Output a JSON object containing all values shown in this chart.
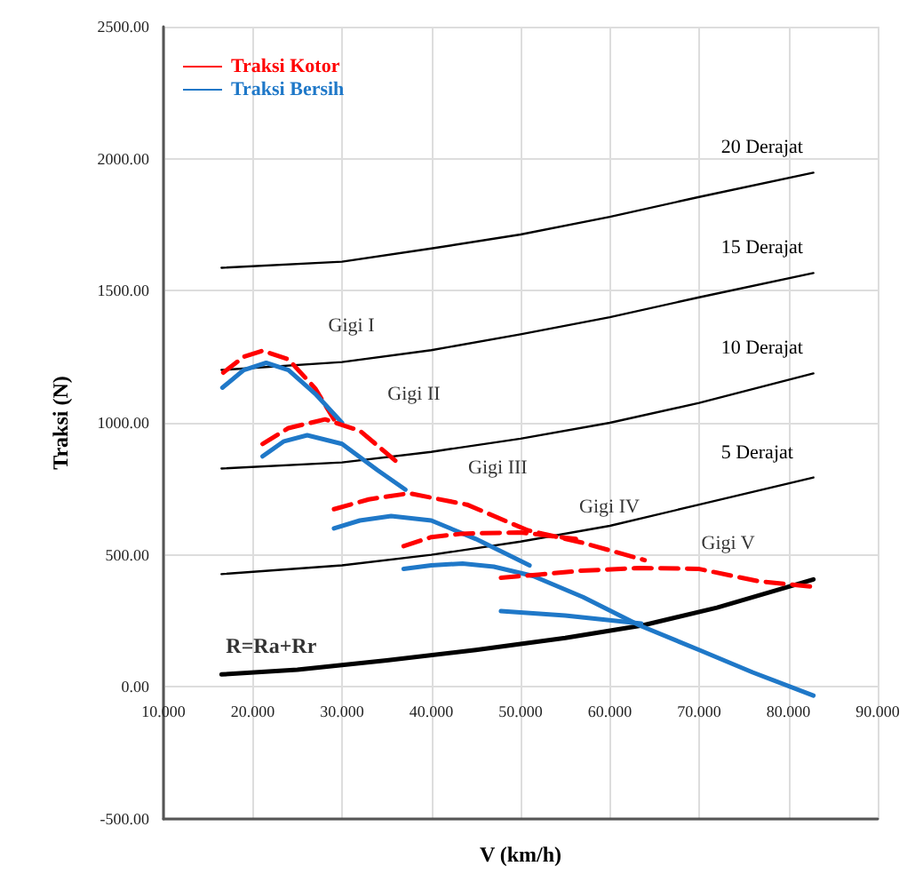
{
  "chart_data": {
    "type": "line",
    "xlabel": "V (km/h)",
    "ylabel": "Traksi (N)",
    "xlim": [
      10,
      90
    ],
    "ylim": [
      -500,
      2500
    ],
    "xticks": [
      {
        "value": 10,
        "label": "10.000"
      },
      {
        "value": 20,
        "label": "20.000"
      },
      {
        "value": 30,
        "label": "30.000"
      },
      {
        "value": 40,
        "label": "40.000"
      },
      {
        "value": 50,
        "label": "50.000"
      },
      {
        "value": 60,
        "label": "60.000"
      },
      {
        "value": 70,
        "label": "70.000"
      },
      {
        "value": 80,
        "label": "80.000"
      },
      {
        "value": 90,
        "label": "90.000"
      }
    ],
    "yticks": [
      {
        "value": -500,
        "label": "-500.00"
      },
      {
        "value": 0,
        "label": "0.00"
      },
      {
        "value": 500,
        "label": "500.00"
      },
      {
        "value": 1000,
        "label": "1000.00"
      },
      {
        "value": 1500,
        "label": "1500.00"
      },
      {
        "value": 2000,
        "label": "2000.00"
      },
      {
        "value": 2500,
        "label": "2500.00"
      }
    ],
    "grid": true,
    "legend": "top left",
    "marker": "none",
    "series": [
      {
        "name": "Traksi Kotor",
        "color": "#ff0000",
        "line_style": "dashed",
        "x": [
          16.7,
          19,
          21.1,
          24,
          27,
          29.1
        ],
        "values": [
          1190,
          1250,
          1273,
          1240,
          1130,
          1013
        ]
      },
      {
        "name": "Traksi Bersih",
        "color": "#1f78c8",
        "line_style": "solid",
        "x": [
          16.6,
          19,
          21.5,
          24,
          27,
          30
        ],
        "values": [
          1133,
          1200,
          1227,
          1200,
          1110,
          1000
        ]
      },
      {
        "color": "#ff0000",
        "line_style": "dashed",
        "x": [
          21.1,
          24,
          28.1,
          32,
          36.1
        ],
        "values": [
          920,
          980,
          1013,
          970,
          853
        ]
      },
      {
        "color": "#1f78c8",
        "line_style": "solid",
        "x": [
          21.1,
          23.5,
          26.1,
          30,
          34,
          37.1
        ],
        "values": [
          873,
          930,
          953,
          920,
          820,
          747
        ]
      },
      {
        "color": "#ff0000",
        "line_style": "dashed",
        "x": [
          29.1,
          33,
          37.5,
          44,
          50.8,
          56.8,
          63.9
        ],
        "values": [
          673,
          710,
          733,
          690,
          593,
          547,
          480
        ]
      },
      {
        "color": "#1f78c8",
        "line_style": "solid",
        "x": [
          29.1,
          32,
          35.5,
          40,
          45,
          51
        ],
        "values": [
          600,
          630,
          647,
          630,
          560,
          460
        ]
      },
      {
        "color": "#ff0000",
        "line_style": "dashed",
        "x": [
          36.9,
          40,
          43.4,
          50,
          56.2
        ],
        "values": [
          533,
          567,
          580,
          585,
          560
        ]
      },
      {
        "color": "#1f78c8",
        "line_style": "solid",
        "x": [
          36.9,
          40,
          43.5,
          47,
          51.4,
          57,
          63.3,
          70,
          76,
          82.8
        ],
        "values": [
          447,
          460,
          467,
          455,
          420,
          340,
          233,
          140,
          55,
          -33
        ]
      },
      {
        "color": "#ff0000",
        "line_style": "dashed",
        "x": [
          47.8,
          52,
          56.8,
          63.3,
          69.9,
          76.7,
          82.6
        ],
        "values": [
          413,
          425,
          440,
          450,
          447,
          400,
          380
        ]
      },
      {
        "color": "#1f78c8",
        "line_style": "solid",
        "x": [
          47.8,
          55,
          63.5
        ],
        "values": [
          287,
          270,
          240
        ]
      },
      {
        "name": "20 Derajat",
        "color": "#000000",
        "line_style": "solid",
        "x": [
          16.5,
          30,
          40,
          50,
          60,
          70,
          82.8
        ],
        "values": [
          1587,
          1610,
          1660,
          1713,
          1780,
          1855,
          1947
        ]
      },
      {
        "name": "15 Derajat",
        "color": "#000000",
        "line_style": "solid",
        "x": [
          16.5,
          30,
          40,
          50,
          60,
          70,
          82.8
        ],
        "values": [
          1200,
          1230,
          1275,
          1335,
          1400,
          1475,
          1567
        ]
      },
      {
        "name": "10 Derajat",
        "color": "#000000",
        "line_style": "solid",
        "x": [
          16.5,
          30,
          40,
          50,
          60,
          70,
          82.8
        ],
        "values": [
          827,
          850,
          890,
          940,
          1000,
          1075,
          1187
        ]
      },
      {
        "name": "5 Derajat",
        "color": "#000000",
        "line_style": "solid",
        "x": [
          16.5,
          30,
          40,
          50,
          60,
          70,
          82.8
        ],
        "values": [
          427,
          460,
          500,
          550,
          610,
          690,
          793
        ]
      },
      {
        "name": "R=Ra+Rr",
        "color": "#000000",
        "line_style": "solid",
        "x": [
          16.5,
          25,
          35,
          45,
          55,
          63.7,
          72,
          82.8
        ],
        "values": [
          47,
          65,
          100,
          140,
          185,
          233,
          300,
          407
        ]
      }
    ],
    "annotations": [
      "Gigi I",
      "Gigi II",
      "Gigi III",
      "Gigi IV",
      "Gigi V"
    ]
  }
}
